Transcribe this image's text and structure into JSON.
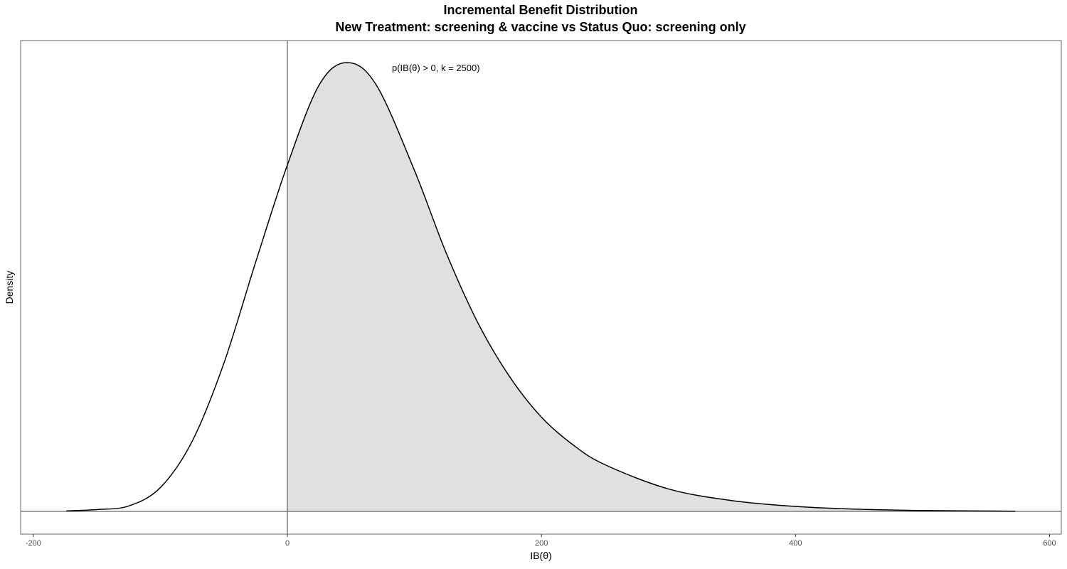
{
  "chart_data": {
    "type": "area",
    "title": "Incremental Benefit Distribution",
    "subtitle": "New Treatment: screening & vaccine vs Status Quo: screening only",
    "xlabel": "IB(θ)",
    "ylabel": "Density",
    "xlim": [
      -210,
      610
    ],
    "x_ticks": [
      -200,
      0,
      200,
      400,
      600
    ],
    "x_tick_labels": [
      "-200",
      "0",
      "200",
      "400",
      "600"
    ],
    "y_ticks_shown": false,
    "grid": false,
    "annotation": "p(IB(θ) > 0, k = 2500)",
    "reference_lines": {
      "vertical_x": 0,
      "horizontal_y": 0
    },
    "shaded_region": "x >= 0",
    "density_curve": {
      "x": [
        -174,
        -150,
        -125,
        -100,
        -75,
        -50,
        -25,
        0,
        25,
        47,
        70,
        100,
        125,
        150,
        175,
        200,
        225,
        250,
        300,
        350,
        400,
        450,
        500,
        573
      ],
      "y": [
        0.0012,
        0.004,
        0.012,
        0.053,
        0.156,
        0.33,
        0.555,
        0.772,
        0.95,
        1.0,
        0.95,
        0.76,
        0.576,
        0.42,
        0.3,
        0.21,
        0.148,
        0.104,
        0.05,
        0.024,
        0.011,
        0.0047,
        0.002,
        0.0004
      ]
    },
    "colors": {
      "line": "#000000",
      "fill": "#e0e0e0",
      "reference": "#666666",
      "frame": "#666666"
    }
  }
}
